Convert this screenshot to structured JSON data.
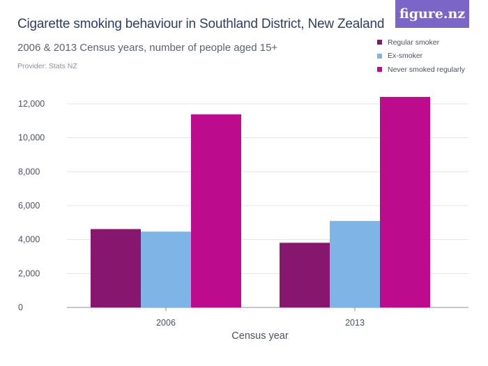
{
  "header": {
    "title": "Cigarette smoking behaviour in Southland District, New Zealand",
    "subtitle": "2006 & 2013 Census years, number of people aged 15+",
    "provider": "Provider: Stats NZ",
    "logo": "figure.nz"
  },
  "chart_data": {
    "type": "bar",
    "categories": [
      "2006",
      "2013"
    ],
    "series": [
      {
        "name": "Regular smoker",
        "color": "#87166e",
        "values": [
          4620,
          3810
        ]
      },
      {
        "name": "Ex-smoker",
        "color": "#7fb5e6",
        "values": [
          4470,
          5100
        ]
      },
      {
        "name": "Never smoked regularly",
        "color": "#bd0b8d",
        "values": [
          11380,
          12410
        ]
      }
    ],
    "xlabel": "Census year",
    "ylim": [
      0,
      12000
    ],
    "yticks": [
      "0",
      "2,000",
      "4,000",
      "6,000",
      "8,000",
      "10,000",
      "12,000"
    ],
    "ytick_values": [
      0,
      2000,
      4000,
      6000,
      8000,
      10000,
      12000
    ],
    "grid": true,
    "legend_position": "top-right"
  }
}
